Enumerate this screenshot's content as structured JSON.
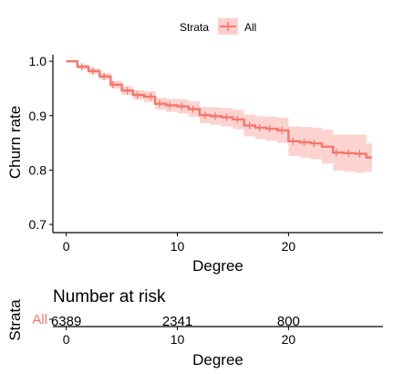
{
  "chart_data": [
    {
      "type": "line",
      "subtype": "survival-step",
      "xlabel": "Degree",
      "ylabel": "Churn rate",
      "xlim": [
        -1.2,
        28.5
      ],
      "ylim": [
        0.685,
        1.012
      ],
      "x_ticks": [
        0,
        10,
        20
      ],
      "y_ticks": [
        0.7,
        0.8,
        0.9,
        1.0
      ],
      "y_tick_labels": [
        "0.7",
        "0.8",
        "0.9",
        "1.0"
      ],
      "grid": false,
      "legend": {
        "title": "Strata",
        "position": "top",
        "entries": [
          "All"
        ]
      },
      "series": [
        {
          "name": "All",
          "color": "#F8766D",
          "ci_color": "#F8766D",
          "x": [
            0,
            1,
            2,
            3,
            4,
            5,
            6,
            7,
            8,
            9,
            10,
            11,
            12,
            13,
            14,
            15,
            16,
            17,
            18,
            19,
            20,
            21,
            22,
            23,
            24,
            25,
            26,
            27
          ],
          "y": [
            1.0,
            0.99,
            0.982,
            0.972,
            0.957,
            0.946,
            0.938,
            0.935,
            0.922,
            0.919,
            0.917,
            0.912,
            0.901,
            0.899,
            0.897,
            0.893,
            0.882,
            0.878,
            0.876,
            0.873,
            0.853,
            0.851,
            0.849,
            0.843,
            0.832,
            0.831,
            0.83,
            0.823
          ],
          "ci_lower": [
            1.0,
            0.986,
            0.977,
            0.966,
            0.95,
            0.938,
            0.929,
            0.925,
            0.911,
            0.907,
            0.904,
            0.898,
            0.886,
            0.883,
            0.88,
            0.875,
            0.862,
            0.857,
            0.854,
            0.85,
            0.826,
            0.823,
            0.82,
            0.812,
            0.799,
            0.797,
            0.795,
            0.797
          ],
          "ci_upper": [
            1.0,
            0.994,
            0.987,
            0.978,
            0.964,
            0.954,
            0.947,
            0.945,
            0.933,
            0.931,
            0.93,
            0.926,
            0.916,
            0.915,
            0.914,
            0.911,
            0.902,
            0.899,
            0.898,
            0.896,
            0.88,
            0.879,
            0.878,
            0.874,
            0.865,
            0.865,
            0.865,
            0.849
          ],
          "censor_x": [
            1.4,
            2.4,
            3.4,
            4.2,
            5.5,
            6.4,
            7.6,
            8.4,
            9.3,
            10.4,
            11.4,
            12.5,
            13.4,
            14.4,
            15.4,
            16.5,
            17.4,
            18.3,
            19.4,
            20.4,
            21.4,
            22.3,
            24.3,
            25.4,
            26.4
          ]
        }
      ]
    },
    {
      "type": "table",
      "title": "Number at risk",
      "xlabel": "Degree",
      "ylabel": "Strata",
      "xlim": [
        -1.2,
        28.5
      ],
      "x_ticks": [
        0,
        10,
        20
      ],
      "rows": [
        {
          "label": "All",
          "color": "#F8766D",
          "x": [
            0,
            10,
            20
          ],
          "values": [
            "6389",
            "2341",
            "800"
          ]
        }
      ]
    }
  ]
}
